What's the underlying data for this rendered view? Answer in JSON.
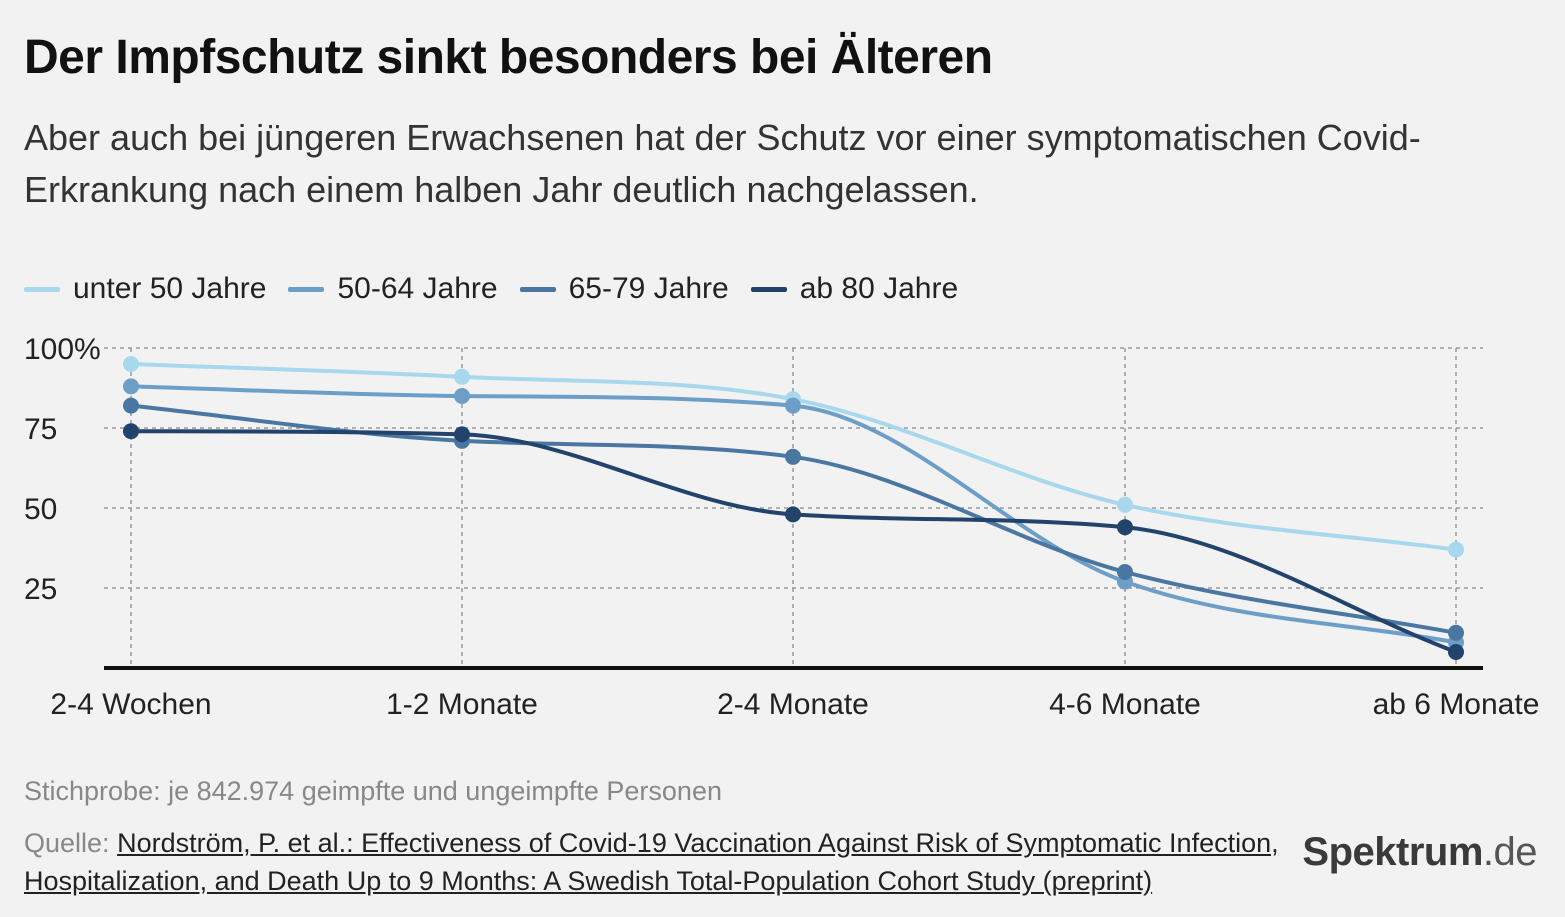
{
  "title": "Der Impfschutz sinkt besonders bei Älteren",
  "subtitle": "Aber auch bei jüngeren Erwachsenen hat der Schutz vor einer symptomatischen Covid-Erkrankung nach einem halben Jahr deutlich nachgelassen.",
  "footer": {
    "note": "Stichprobe: je 842.974 geimpfte und ungeimpfte Personen",
    "source_prefix": "Quelle:",
    "source_link": "Nordström, P. et al.: Effectiveness of Covid-19 Vaccination Against Risk of Symptomatic Infection, Hospitalization, and Death Up to 9 Months: A Swedish Total-Population Cohort Study (preprint)",
    "brand_main": "Spektrum",
    "brand_tld": ".de"
  },
  "chart_data": {
    "type": "line",
    "categories": [
      "2-4 Wochen",
      "1-2 Monate",
      "2-4 Monate",
      "4-6 Monate",
      "ab 6 Monate"
    ],
    "yticks": [
      "100%",
      "75",
      "50",
      "25"
    ],
    "ytick_values": [
      100,
      75,
      50,
      25
    ],
    "ylim": [
      0,
      100
    ],
    "grid": true,
    "legend_position": "top-left",
    "series": [
      {
        "name": "unter 50 Jahre",
        "color": "#a8d8ee",
        "values": [
          95,
          91,
          84,
          51,
          37
        ]
      },
      {
        "name": "50-64 Jahre",
        "color": "#6d9ec8",
        "values": [
          88,
          85,
          82,
          27,
          8
        ]
      },
      {
        "name": "65-79 Jahre",
        "color": "#4a77a2",
        "values": [
          82,
          71,
          66,
          30,
          11
        ]
      },
      {
        "name": "ab 80 Jahre",
        "color": "#22436b",
        "values": [
          74,
          73,
          48,
          44,
          5
        ]
      }
    ]
  }
}
